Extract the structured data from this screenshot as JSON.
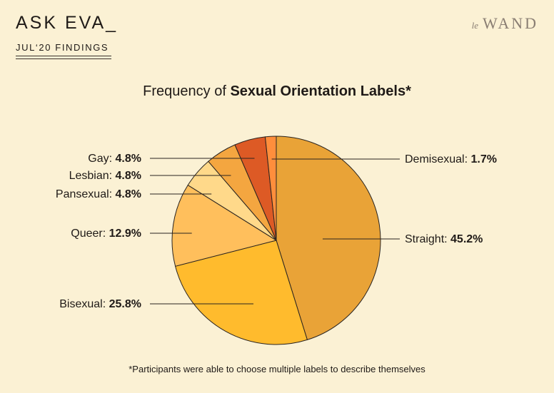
{
  "header": {
    "brand": "ASK EVA_",
    "subtitle": "JUL‘20 FINDINGS",
    "logo_prefix": "le",
    "logo_main": "WAND"
  },
  "footnote": "*Participants were able to choose multiple labels to describe themselves",
  "chart_data": {
    "type": "pie",
    "title_prefix": "Frequency of ",
    "title_bold": "Sexual Orientation Labels*",
    "slices": [
      {
        "name": "Straight",
        "label": "Straight:",
        "value_text": "45.2%",
        "value": 45.2,
        "color": "#e9a337"
      },
      {
        "name": "Bisexual",
        "label": "Bisexual:",
        "value_text": "25.8%",
        "value": 25.8,
        "color": "#ffbb2d"
      },
      {
        "name": "Queer",
        "label": "Queer:",
        "value_text": "12.9%",
        "value": 12.9,
        "color": "#ffbf5c"
      },
      {
        "name": "Pansexual",
        "label": "Pansexual:",
        "value_text": "4.8%",
        "value": 4.8,
        "color": "#ffd98a"
      },
      {
        "name": "Lesbian",
        "label": "Lesbian:",
        "value_text": "4.8%",
        "value": 4.8,
        "color": "#f4a640"
      },
      {
        "name": "Gay",
        "label": "Gay:",
        "value_text": "4.8%",
        "value": 4.8,
        "color": "#dd5a25"
      },
      {
        "name": "Demisexual",
        "label": "Demisexual:",
        "value_text": "1.7%",
        "value": 1.7,
        "color": "#ff8e3c"
      }
    ]
  }
}
